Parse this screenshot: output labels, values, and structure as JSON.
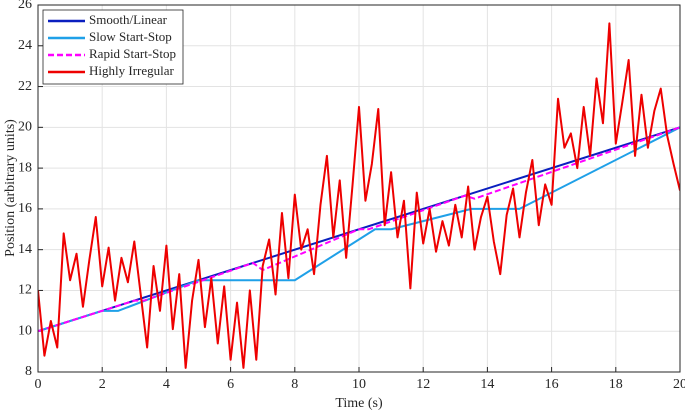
{
  "chart_data": {
    "type": "line",
    "xlabel": "Time (s)",
    "ylabel": "Position (arbitrary units)",
    "xlim": [
      0,
      20
    ],
    "xticks": [
      0,
      2,
      4,
      6,
      8,
      10,
      12,
      14,
      16,
      18,
      20
    ],
    "ylim": [
      8,
      26
    ],
    "yticks": [
      8,
      10,
      12,
      14,
      16,
      18,
      20,
      22,
      24,
      26
    ],
    "grid": true,
    "legend": "upper-left",
    "series": [
      {
        "name": "Smooth/Linear",
        "color": "#0a1fbf",
        "dash": false,
        "x": [
          0,
          20
        ],
        "values": [
          10,
          20
        ]
      },
      {
        "name": "Slow Start-Stop",
        "color": "#1fa0e8",
        "dash": false,
        "x": [
          0,
          2,
          2.5,
          5,
          8,
          10.5,
          11,
          13.5,
          15,
          20
        ],
        "values": [
          10,
          11,
          11,
          12.5,
          12.5,
          15,
          15,
          16,
          16,
          20
        ]
      },
      {
        "name": "Rapid Start-Stop",
        "color": "#ff00ff",
        "dash": true,
        "x": [
          0,
          3,
          3.3,
          6.7,
          7,
          10,
          10.3,
          13.3,
          13.6,
          20
        ],
        "values": [
          10,
          11.5,
          11.5,
          13.35,
          13,
          15,
          15,
          16.65,
          16.5,
          20
        ]
      },
      {
        "name": "Highly Irregular",
        "color": "#ee0000",
        "dash": false,
        "x": [
          0,
          0.2,
          0.4,
          0.6,
          0.8,
          1,
          1.2,
          1.4,
          1.6,
          1.8,
          2,
          2.2,
          2.4,
          2.6,
          2.8,
          3,
          3.2,
          3.4,
          3.6,
          3.8,
          4,
          4.2,
          4.4,
          4.6,
          4.8,
          5,
          5.2,
          5.4,
          5.6,
          5.8,
          6,
          6.2,
          6.4,
          6.6,
          6.8,
          7,
          7.2,
          7.4,
          7.6,
          7.8,
          8,
          8.2,
          8.4,
          8.6,
          8.8,
          9,
          9.2,
          9.4,
          9.6,
          9.8,
          10,
          10.2,
          10.4,
          10.6,
          10.8,
          11,
          11.2,
          11.4,
          11.6,
          11.8,
          12,
          12.2,
          12.4,
          12.6,
          12.8,
          13,
          13.2,
          13.4,
          13.6,
          13.8,
          14,
          14.2,
          14.4,
          14.6,
          14.8,
          15,
          15.2,
          15.4,
          15.6,
          15.8,
          16,
          16.2,
          16.4,
          16.6,
          16.8,
          17,
          17.2,
          17.4,
          17.6,
          17.8,
          18,
          18.2,
          18.4,
          18.6,
          18.8,
          19,
          19.2,
          19.4,
          19.6,
          19.8,
          20
        ],
        "values": [
          12,
          8.8,
          10.5,
          9.2,
          14.8,
          12.5,
          13.8,
          11.2,
          13.5,
          15.6,
          12.2,
          14.1,
          11.5,
          13.6,
          12.4,
          14.4,
          11.8,
          9.2,
          13.2,
          11,
          14.2,
          10.1,
          12.8,
          8.2,
          11.5,
          13.5,
          10.2,
          12.6,
          9.4,
          12.2,
          8.6,
          11.4,
          8.2,
          12,
          8.6,
          13.2,
          14.5,
          11.8,
          15.8,
          12.6,
          16.7,
          14,
          15,
          12.8,
          16.2,
          18.6,
          14.6,
          17.4,
          13.6,
          17.2,
          21,
          16.4,
          18.2,
          20.9,
          15.2,
          17.8,
          14.6,
          16.4,
          12.1,
          16.8,
          14.3,
          16,
          13.9,
          15.4,
          14.2,
          16.2,
          14.6,
          17.1,
          14,
          15.6,
          16.6,
          14.4,
          12.8,
          15.7,
          17,
          14.6,
          16.8,
          18.4,
          15.2,
          17.2,
          16.2,
          21.4,
          19,
          19.7,
          18,
          21,
          18.6,
          22.4,
          20.2,
          25.1,
          19.2,
          21.2,
          23.3,
          18.6,
          21.6,
          19,
          20.8,
          21.9,
          19.6,
          18.2,
          16.9
        ]
      }
    ]
  }
}
